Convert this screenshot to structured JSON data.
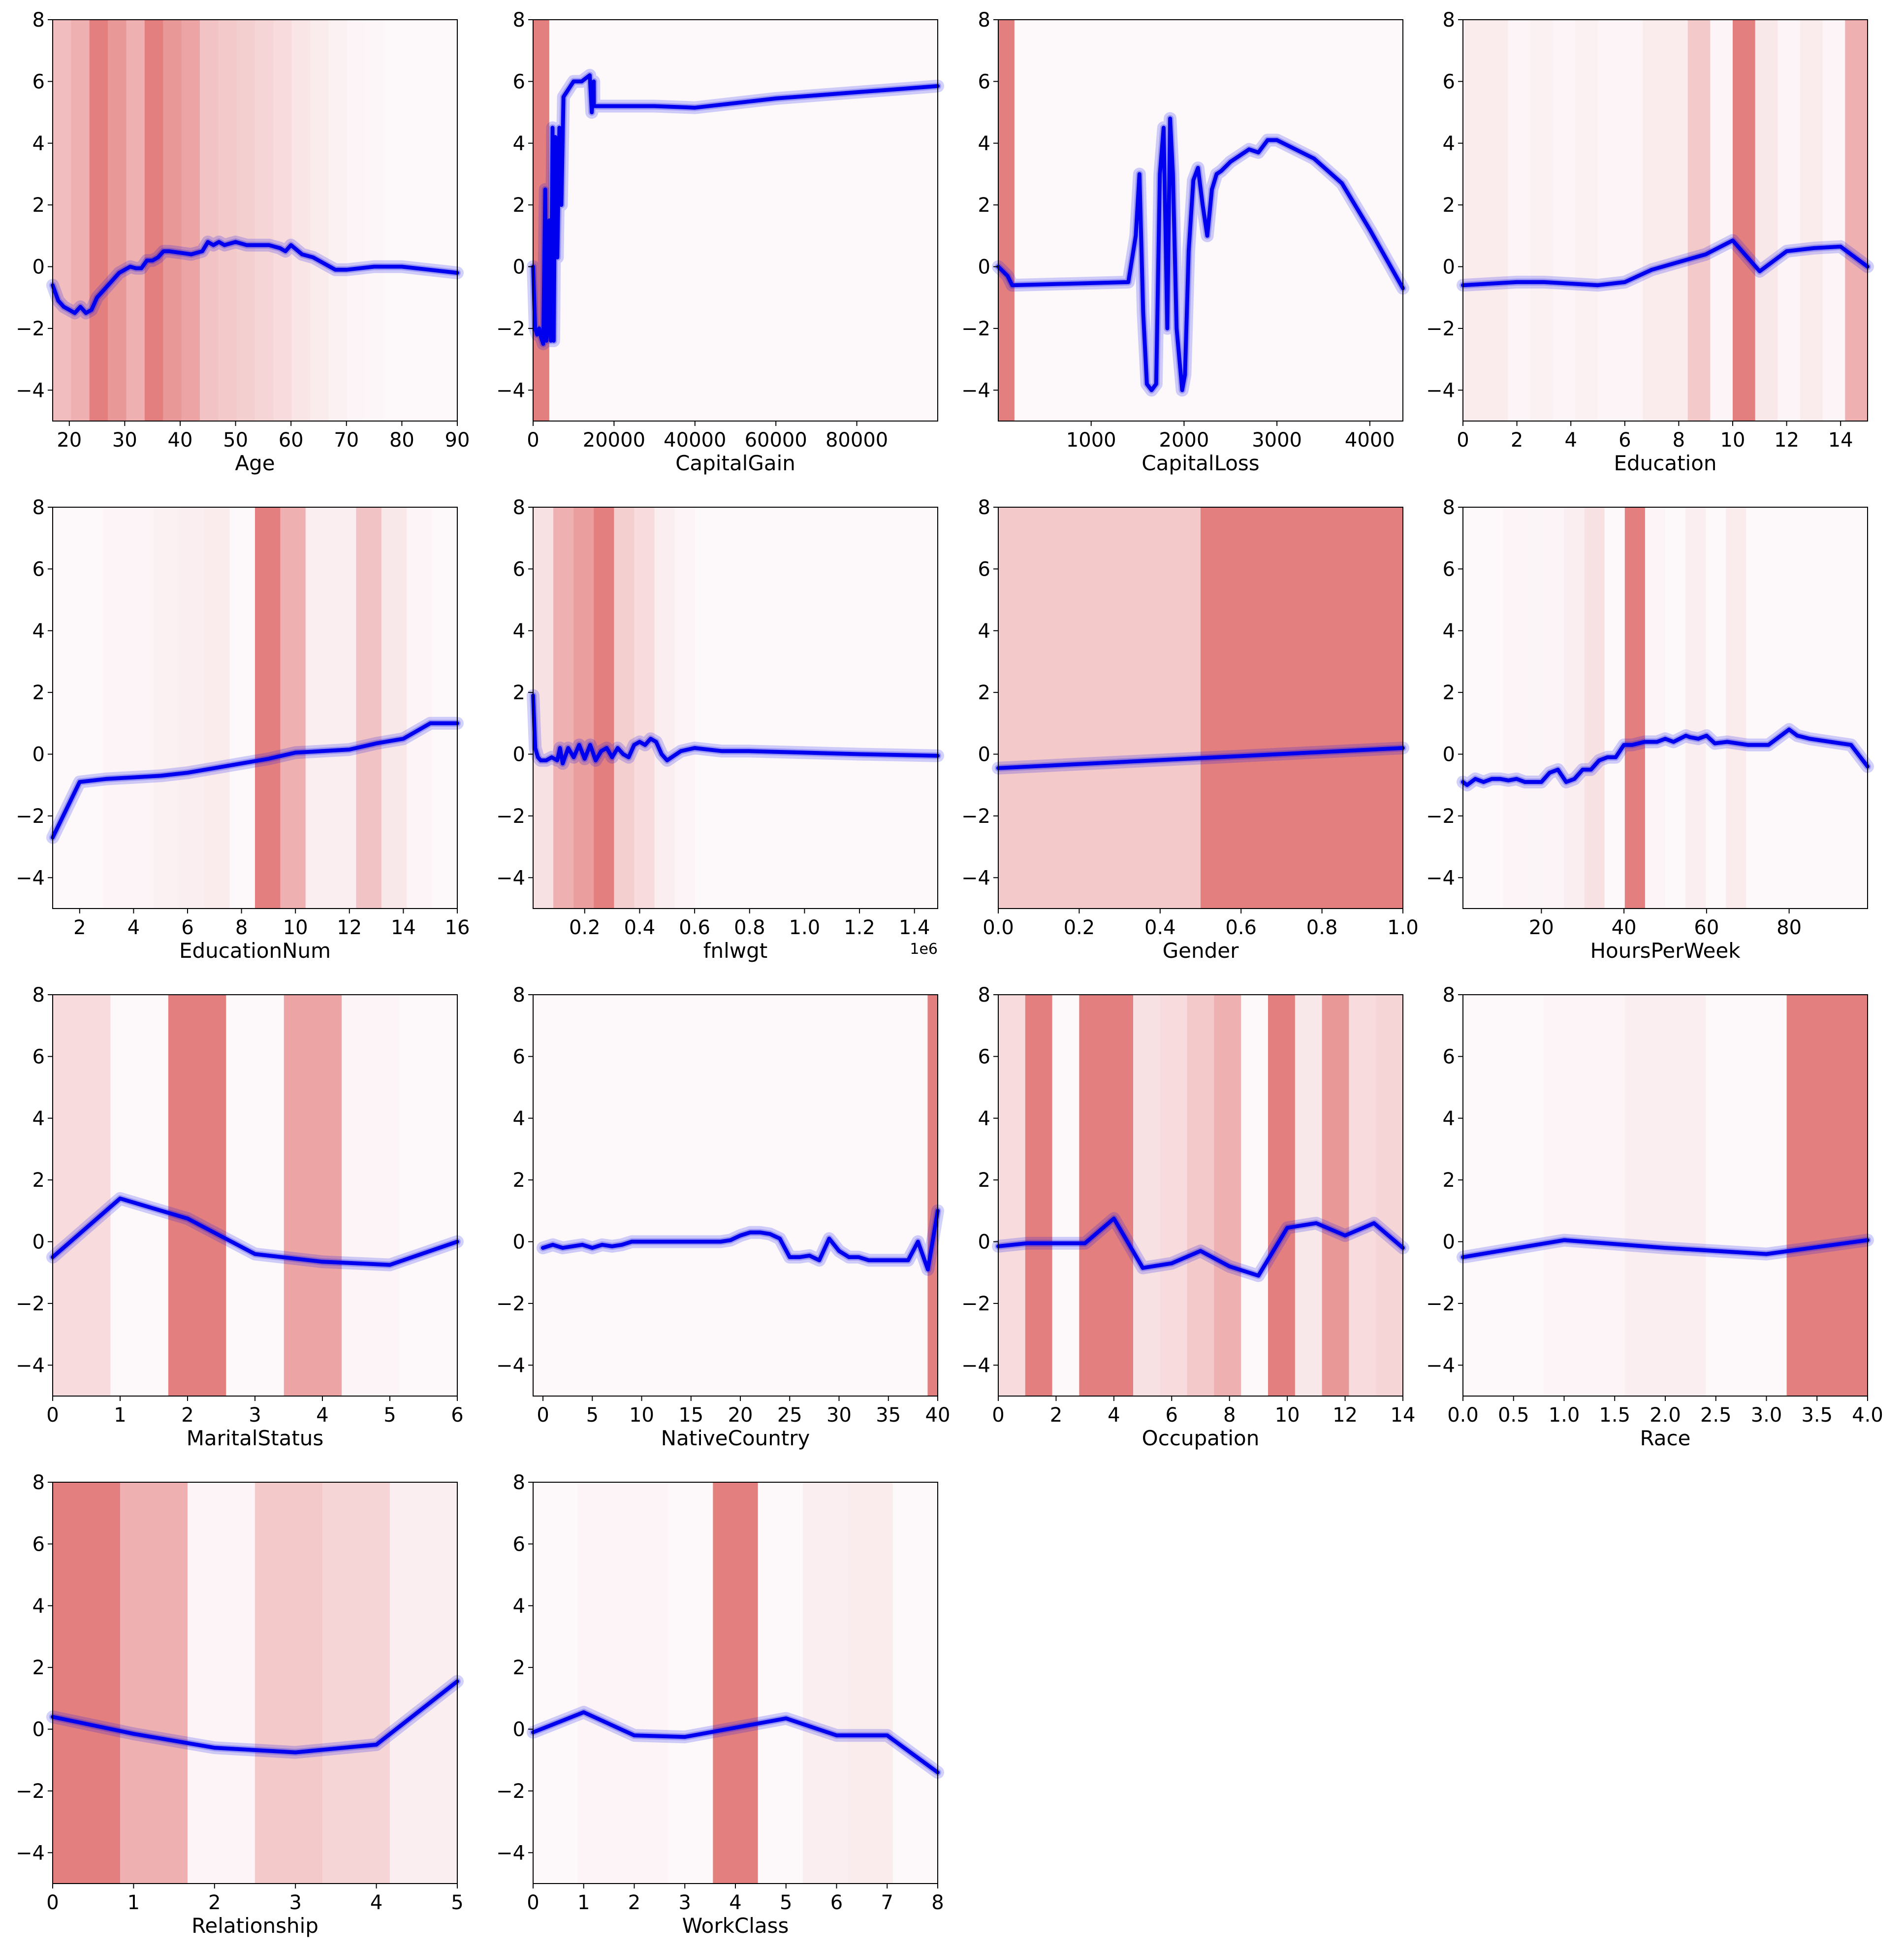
{
  "chart_data": [
    {
      "type": "line",
      "xlabel": "Age",
      "xlim": [
        17,
        90
      ],
      "ylim": [
        -5,
        8
      ],
      "xticks": [
        20,
        30,
        40,
        50,
        60,
        70,
        80,
        90
      ],
      "yticks": [
        -4,
        -2,
        0,
        2,
        4,
        6,
        8
      ],
      "x": [
        17,
        18,
        19,
        20,
        21,
        22,
        23,
        24,
        25,
        26,
        27,
        28,
        29,
        30,
        31,
        32,
        33,
        34,
        35,
        36,
        37,
        38,
        40,
        42,
        44,
        45,
        46,
        47,
        48,
        49,
        50,
        52,
        54,
        56,
        58,
        59,
        60,
        62,
        64,
        66,
        68,
        70,
        75,
        80,
        85,
        90
      ],
      "values": [
        -0.6,
        -1.1,
        -1.3,
        -1.4,
        -1.5,
        -1.3,
        -1.5,
        -1.4,
        -1.0,
        -0.8,
        -0.6,
        -0.4,
        -0.2,
        -0.1,
        0.0,
        -0.05,
        -0.05,
        0.2,
        0.2,
        0.3,
        0.5,
        0.5,
        0.45,
        0.4,
        0.5,
        0.8,
        0.7,
        0.8,
        0.7,
        0.75,
        0.8,
        0.7,
        0.7,
        0.7,
        0.6,
        0.5,
        0.7,
        0.4,
        0.3,
        0.1,
        -0.1,
        -0.1,
        0.0,
        0.0,
        -0.1,
        -0.2
      ],
      "importance": [
        0.5,
        0.6,
        1.0,
        0.8,
        0.6,
        1.0,
        0.8,
        0.7,
        0.45,
        0.4,
        0.35,
        0.3,
        0.25,
        0.18,
        0.12,
        0.08,
        0.05,
        0.03,
        0.02,
        0.02,
        0.02,
        0.02
      ]
    },
    {
      "type": "line",
      "xlabel": "CapitalGain",
      "xlim": [
        0,
        99999
      ],
      "ylim": [
        -5,
        8
      ],
      "xticks": [
        0,
        20000,
        40000,
        60000,
        80000
      ],
      "yticks": [
        -4,
        -2,
        0,
        2,
        4,
        6,
        8
      ],
      "x": [
        0,
        500,
        1000,
        1500,
        2000,
        2500,
        3000,
        3300,
        3600,
        4000,
        4400,
        4800,
        5100,
        5500,
        6000,
        6500,
        7000,
        7500,
        8000,
        9000,
        10000,
        12000,
        14000,
        14500,
        15000,
        15024,
        15500,
        20000,
        30000,
        40000,
        50000,
        60000,
        70000,
        80000,
        90000,
        99999
      ],
      "values": [
        0.0,
        -2.0,
        -2.2,
        -2.0,
        -2.3,
        -2.5,
        2.5,
        -2.4,
        -2.0,
        1.5,
        -2.4,
        4.5,
        -2.4,
        4.2,
        0.3,
        4.5,
        2.0,
        5.5,
        5.6,
        5.8,
        6.0,
        6.0,
        6.2,
        5.0,
        6.0,
        5.2,
        5.2,
        5.2,
        5.2,
        5.15,
        5.3,
        5.45,
        5.55,
        5.65,
        5.75,
        5.85
      ],
      "importance": [
        1.0,
        0.02,
        0.02,
        0.02,
        0.02,
        0.02,
        0.02,
        0.02,
        0.02,
        0.02,
        0.02,
        0.02,
        0.02,
        0.02,
        0.02,
        0.02,
        0.02,
        0.02,
        0.02,
        0.02,
        0.02,
        0.02,
        0.02,
        0.02,
        0.02
      ]
    },
    {
      "type": "line",
      "xlabel": "CapitalLoss",
      "xlim": [
        0,
        4356
      ],
      "ylim": [
        -5,
        8
      ],
      "xticks": [
        1000,
        2000,
        3000,
        4000
      ],
      "yticks": [
        -4,
        -2,
        0,
        2,
        4,
        6,
        8
      ],
      "x": [
        0,
        100,
        150,
        1400,
        1480,
        1520,
        1560,
        1600,
        1650,
        1700,
        1740,
        1780,
        1820,
        1850,
        1880,
        1920,
        1980,
        2010,
        2050,
        2100,
        2150,
        2200,
        2250,
        2300,
        2350,
        2400,
        2500,
        2700,
        2800,
        2900,
        3000,
        3200,
        3400,
        3700,
        4000,
        4356
      ],
      "values": [
        0.0,
        -0.3,
        -0.6,
        -0.5,
        1.0,
        3.0,
        -1.5,
        -3.8,
        -4.0,
        -3.8,
        3.0,
        4.5,
        -2.0,
        4.8,
        3.0,
        -2.0,
        -4.0,
        -3.5,
        0.5,
        2.8,
        3.2,
        2.0,
        1.0,
        2.5,
        3.0,
        3.1,
        3.4,
        3.8,
        3.7,
        4.1,
        4.1,
        3.8,
        3.5,
        2.7,
        1.2,
        -0.7
      ],
      "importance": [
        1.0,
        0.02,
        0.02,
        0.02,
        0.02,
        0.02,
        0.02,
        0.02,
        0.02,
        0.02,
        0.02,
        0.02,
        0.02,
        0.02,
        0.02,
        0.02,
        0.02,
        0.02,
        0.02,
        0.02,
        0.02,
        0.02,
        0.02,
        0.02,
        0.02
      ]
    },
    {
      "type": "line",
      "xlabel": "Education",
      "xlim": [
        0,
        15
      ],
      "ylim": [
        -5,
        8
      ],
      "xticks": [
        0,
        2,
        4,
        6,
        8,
        10,
        12,
        14
      ],
      "yticks": [
        -4,
        -2,
        0,
        2,
        4,
        6,
        8
      ],
      "x": [
        0,
        1,
        2,
        3,
        4,
        5,
        6,
        7,
        8,
        9,
        10,
        11,
        12,
        13,
        14,
        15
      ],
      "values": [
        -0.6,
        -0.55,
        -0.5,
        -0.5,
        -0.55,
        -0.6,
        -0.5,
        -0.1,
        0.15,
        0.4,
        0.85,
        -0.15,
        0.5,
        0.6,
        0.65,
        0.0
      ],
      "importance": [
        0.12,
        0.12,
        0.05,
        0.07,
        0.05,
        0.07,
        0.05,
        0.05,
        0.12,
        0.12,
        0.4,
        0.05,
        1.0,
        0.15,
        0.05,
        0.12,
        0.05,
        0.6
      ]
    },
    {
      "type": "line",
      "xlabel": "EducationNum",
      "xlim": [
        1,
        16
      ],
      "ylim": [
        -5,
        8
      ],
      "xticks": [
        2,
        4,
        6,
        8,
        10,
        12,
        14,
        16
      ],
      "yticks": [
        -4,
        -2,
        0,
        2,
        4,
        6,
        8
      ],
      "x": [
        1,
        2,
        3,
        4,
        5,
        6,
        7,
        8,
        9,
        10,
        11,
        12,
        13,
        14,
        15,
        16
      ],
      "values": [
        -2.7,
        -0.9,
        -0.8,
        -0.75,
        -0.7,
        -0.6,
        -0.45,
        -0.3,
        -0.15,
        0.05,
        0.1,
        0.15,
        0.35,
        0.5,
        1.0,
        1.0
      ],
      "importance": [
        0.02,
        0.02,
        0.05,
        0.05,
        0.08,
        0.1,
        0.12,
        0.02,
        1.0,
        0.6,
        0.1,
        0.1,
        0.45,
        0.15,
        0.05,
        0.02
      ]
    },
    {
      "type": "line",
      "xlabel": "fnlwgt",
      "x_offset_label": "1e6",
      "xlim": [
        12285,
        1484705
      ],
      "ylim": [
        -5,
        8
      ],
      "xticks": [
        200000,
        400000,
        600000,
        800000,
        1000000,
        1200000,
        1400000
      ],
      "xticklabels": [
        "0.2",
        "0.4",
        "0.6",
        "0.8",
        "1.0",
        "1.2",
        "1.4"
      ],
      "yticks": [
        -4,
        -2,
        0,
        2,
        4,
        6,
        8
      ],
      "x": [
        12285,
        20000,
        30000,
        40000,
        60000,
        80000,
        100000,
        110000,
        120000,
        140000,
        160000,
        180000,
        200000,
        220000,
        240000,
        260000,
        280000,
        300000,
        320000,
        340000,
        360000,
        380000,
        400000,
        420000,
        440000,
        460000,
        480000,
        500000,
        550000,
        600000,
        700000,
        800000,
        1000000,
        1200000,
        1484705
      ],
      "values": [
        1.9,
        0.2,
        -0.1,
        -0.2,
        -0.2,
        -0.1,
        -0.2,
        0.2,
        -0.3,
        0.2,
        -0.1,
        0.3,
        -0.15,
        0.3,
        -0.2,
        0.1,
        0.2,
        -0.1,
        0.2,
        0.0,
        -0.1,
        0.3,
        0.4,
        0.3,
        0.5,
        0.4,
        0.0,
        -0.2,
        0.1,
        0.2,
        0.1,
        0.1,
        0.05,
        0.0,
        -0.05
      ],
      "importance": [
        0.2,
        0.6,
        0.75,
        1.0,
        0.35,
        0.25,
        0.1,
        0.05,
        0.02,
        0.02,
        0.02,
        0.02,
        0.02,
        0.02,
        0.02,
        0.02,
        0.02,
        0.02,
        0.02,
        0.02
      ]
    },
    {
      "type": "line",
      "xlabel": "Gender",
      "xlim": [
        0,
        1
      ],
      "ylim": [
        -5,
        8
      ],
      "xticks": [
        0.0,
        0.2,
        0.4,
        0.6,
        0.8,
        1.0
      ],
      "xticklabels": [
        "0.0",
        "0.2",
        "0.4",
        "0.6",
        "0.8",
        "1.0"
      ],
      "yticks": [
        -4,
        -2,
        0,
        2,
        4,
        6,
        8
      ],
      "x": [
        0,
        1
      ],
      "values": [
        -0.45,
        0.2
      ],
      "importance": [
        0.4,
        1.0
      ]
    },
    {
      "type": "line",
      "xlabel": "HoursPerWeek",
      "xlim": [
        1,
        99
      ],
      "ylim": [
        -5,
        8
      ],
      "xticks": [
        20,
        40,
        60,
        80
      ],
      "yticks": [
        -4,
        -2,
        0,
        2,
        4,
        6,
        8
      ],
      "x": [
        1,
        2,
        4,
        6,
        8,
        10,
        12,
        14,
        16,
        18,
        20,
        22,
        24,
        26,
        28,
        30,
        32,
        34,
        36,
        38,
        40,
        42,
        45,
        48,
        50,
        52,
        55,
        56,
        58,
        60,
        62,
        65,
        70,
        75,
        80,
        82,
        85,
        90,
        95,
        99
      ],
      "values": [
        -0.9,
        -1.0,
        -0.8,
        -0.9,
        -0.8,
        -0.8,
        -0.85,
        -0.8,
        -0.9,
        -0.9,
        -0.9,
        -0.6,
        -0.5,
        -0.9,
        -0.8,
        -0.5,
        -0.5,
        -0.2,
        -0.1,
        -0.1,
        0.3,
        0.3,
        0.4,
        0.4,
        0.5,
        0.4,
        0.6,
        0.55,
        0.5,
        0.6,
        0.35,
        0.4,
        0.3,
        0.3,
        0.8,
        0.6,
        0.5,
        0.4,
        0.3,
        -0.4
      ],
      "importance": [
        0.02,
        0.02,
        0.05,
        0.04,
        0.05,
        0.1,
        0.2,
        0.02,
        1.0,
        0.05,
        0.02,
        0.1,
        0.02,
        0.12,
        0.02,
        0.02,
        0.02,
        0.02,
        0.02,
        0.02
      ]
    },
    {
      "type": "line",
      "xlabel": "MaritalStatus",
      "xlim": [
        0,
        6
      ],
      "ylim": [
        -5,
        8
      ],
      "xticks": [
        0,
        1,
        2,
        3,
        4,
        5,
        6
      ],
      "yticks": [
        -4,
        -2,
        0,
        2,
        4,
        6,
        8
      ],
      "x": [
        0,
        1,
        2,
        3,
        4,
        5,
        6
      ],
      "values": [
        -0.5,
        1.4,
        0.75,
        -0.4,
        -0.65,
        -0.75,
        0.0
      ],
      "importance": [
        0.25,
        0.02,
        1.0,
        0.02,
        0.7,
        0.05,
        0.02
      ]
    },
    {
      "type": "line",
      "xlabel": "NativeCountry",
      "xlim": [
        -1,
        40
      ],
      "ylim": [
        -5,
        8
      ],
      "xticks": [
        0,
        5,
        10,
        15,
        20,
        25,
        30,
        35,
        40
      ],
      "yticks": [
        -4,
        -2,
        0,
        2,
        4,
        6,
        8
      ],
      "x": [
        0,
        1,
        2,
        3,
        4,
        5,
        6,
        7,
        8,
        9,
        10,
        12,
        14,
        16,
        18,
        19,
        20,
        21,
        22,
        23,
        24,
        25,
        26,
        27,
        28,
        29,
        30,
        31,
        32,
        33,
        34,
        35,
        36,
        37,
        38,
        39,
        40
      ],
      "values": [
        -0.2,
        -0.1,
        -0.2,
        -0.15,
        -0.1,
        -0.2,
        -0.1,
        -0.15,
        -0.1,
        0.0,
        0.0,
        0.0,
        0.0,
        0.0,
        0.0,
        0.05,
        0.2,
        0.3,
        0.3,
        0.25,
        0.1,
        -0.5,
        -0.5,
        -0.45,
        -0.6,
        0.1,
        -0.3,
        -0.5,
        -0.5,
        -0.6,
        -0.6,
        -0.6,
        -0.6,
        -0.6,
        0.0,
        -0.9,
        1.0
      ],
      "importance": [
        0.02,
        0.02,
        0.02,
        0.02,
        0.02,
        0.02,
        0.02,
        0.02,
        0.02,
        0.02,
        0.02,
        0.02,
        0.02,
        0.02,
        0.02,
        0.02,
        0.02,
        0.02,
        0.02,
        0.02,
        0.02,
        0.02,
        0.02,
        0.02,
        0.02,
        0.02,
        0.02,
        0.02,
        0.02,
        0.02,
        0.02,
        0.02,
        0.02,
        0.02,
        0.02,
        0.02,
        0.02,
        0.02,
        0.02,
        1.0
      ]
    },
    {
      "type": "line",
      "xlabel": "Occupation",
      "xlim": [
        0,
        14
      ],
      "ylim": [
        -5,
        8
      ],
      "xticks": [
        0,
        2,
        4,
        6,
        8,
        10,
        12,
        14
      ],
      "yticks": [
        -4,
        -2,
        0,
        2,
        4,
        6,
        8
      ],
      "x": [
        0,
        1,
        2,
        3,
        4,
        5,
        6,
        7,
        8,
        9,
        10,
        11,
        12,
        13,
        14
      ],
      "values": [
        -0.15,
        -0.05,
        -0.05,
        -0.05,
        0.75,
        -0.85,
        -0.7,
        -0.3,
        -0.8,
        -1.1,
        0.45,
        0.6,
        0.2,
        0.6,
        -0.2
      ],
      "importance": [
        0.25,
        1.0,
        0.02,
        1.0,
        1.0,
        0.2,
        0.25,
        0.4,
        0.6,
        0.02,
        1.0,
        0.15,
        0.8,
        0.25,
        0.3
      ]
    },
    {
      "type": "line",
      "xlabel": "Race",
      "xlim": [
        0,
        4
      ],
      "ylim": [
        -5,
        8
      ],
      "xticks": [
        0.0,
        0.5,
        1.0,
        1.5,
        2.0,
        2.5,
        3.0,
        3.5,
        4.0
      ],
      "xticklabels": [
        "0.0",
        "0.5",
        "1.0",
        "1.5",
        "2.0",
        "2.5",
        "3.0",
        "3.5",
        "4.0"
      ],
      "yticks": [
        -4,
        -2,
        0,
        2,
        4,
        6,
        8
      ],
      "x": [
        0,
        1,
        2,
        3,
        4
      ],
      "values": [
        -0.5,
        0.05,
        -0.2,
        -0.4,
        0.05
      ],
      "importance": [
        0.02,
        0.05,
        0.1,
        0.02,
        1.0
      ]
    },
    {
      "type": "line",
      "xlabel": "Relationship",
      "xlim": [
        0,
        5
      ],
      "ylim": [
        -5,
        8
      ],
      "xticks": [
        0,
        1,
        2,
        3,
        4,
        5
      ],
      "yticks": [
        -4,
        -2,
        0,
        2,
        4,
        6,
        8
      ],
      "x": [
        0,
        1,
        2,
        3,
        4,
        5
      ],
      "values": [
        0.4,
        -0.15,
        -0.6,
        -0.75,
        -0.5,
        1.55
      ],
      "importance": [
        1.0,
        0.6,
        0.05,
        0.4,
        0.3,
        0.1
      ]
    },
    {
      "type": "line",
      "xlabel": "WorkClass",
      "xlim": [
        0,
        8
      ],
      "ylim": [
        -5,
        8
      ],
      "xticks": [
        0,
        1,
        2,
        3,
        4,
        5,
        6,
        7,
        8
      ],
      "yticks": [
        -4,
        -2,
        0,
        2,
        4,
        6,
        8
      ],
      "x": [
        0,
        1,
        2,
        3,
        4,
        5,
        6,
        7,
        8
      ],
      "values": [
        -0.1,
        0.55,
        -0.2,
        -0.25,
        0.05,
        0.35,
        -0.2,
        -0.2,
        -1.4
      ],
      "importance": [
        0.02,
        0.05,
        0.05,
        0.02,
        1.0,
        0.02,
        0.1,
        0.12,
        0.02
      ]
    }
  ],
  "colors": {
    "curve": "#0000ee",
    "band_max": "#e47f7f",
    "band_min": "#fdfafc"
  }
}
